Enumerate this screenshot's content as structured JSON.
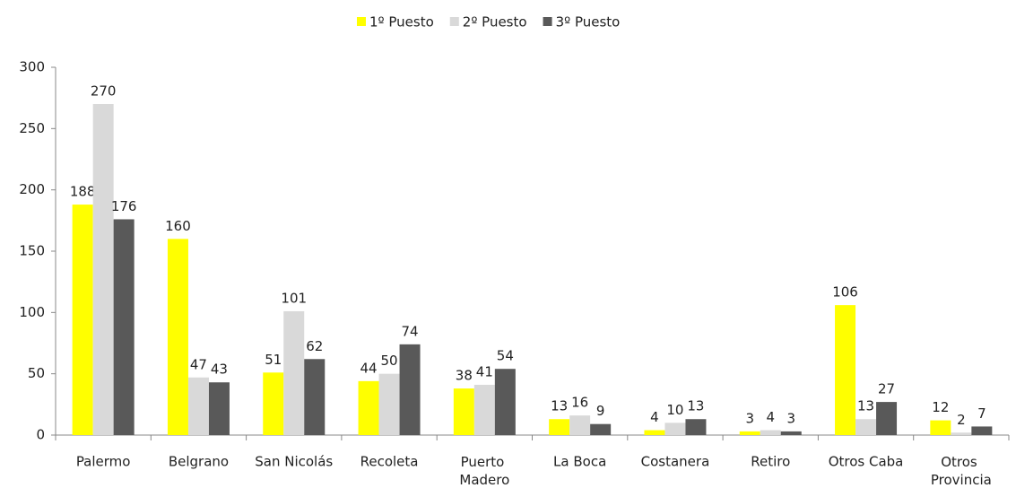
{
  "chart_data": {
    "type": "bar",
    "categories": [
      "Palermo",
      "Belgrano",
      "San Nicolás",
      "Recoleta",
      "Puerto Madero",
      "La Boca",
      "Costanera",
      "Retiro",
      "Otros Caba",
      "Otros Provincia"
    ],
    "series": [
      {
        "name": "1º Puesto",
        "color": "#ffff00",
        "values": [
          188,
          160,
          51,
          44,
          38,
          13,
          4,
          3,
          106,
          12
        ]
      },
      {
        "name": "2º Puesto",
        "color": "#d9d9d9",
        "values": [
          270,
          47,
          101,
          50,
          41,
          16,
          10,
          4,
          13,
          2
        ]
      },
      {
        "name": "3º Puesto",
        "color": "#595959",
        "values": [
          176,
          43,
          62,
          74,
          54,
          9,
          13,
          3,
          27,
          7
        ]
      }
    ],
    "ylim": [
      0,
      300
    ],
    "yticks": [
      0,
      50,
      100,
      150,
      200,
      250,
      300
    ],
    "grid": false,
    "legend": "top"
  }
}
